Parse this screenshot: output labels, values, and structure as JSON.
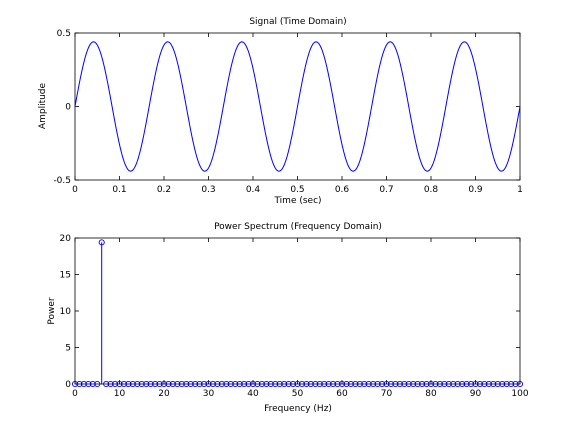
{
  "chart_data": [
    {
      "type": "line",
      "title": "Signal (Time Domain)",
      "xlabel": "Time (sec)",
      "ylabel": "Amplitude",
      "xlim": [
        0,
        1
      ],
      "ylim": [
        -0.5,
        0.5
      ],
      "xticks": [
        "0",
        "0.1",
        "0.2",
        "0.3",
        "0.4",
        "0.5",
        "0.6",
        "0.7",
        "0.8",
        "0.9",
        "1"
      ],
      "yticks": [
        "-0.5",
        "0",
        "0.5"
      ],
      "grid": false,
      "series": [
        {
          "function": "amplitude * sin(2*pi*frequency_hz*t)",
          "amplitude": 0.44,
          "frequency_hz": 6,
          "t_start": 0,
          "t_end": 1,
          "color": "#0000ff"
        }
      ]
    },
    {
      "type": "stem",
      "title": "Power Spectrum (Frequency Domain)",
      "xlabel": "Frequency (Hz)",
      "ylabel": "Power",
      "xlim": [
        0,
        100
      ],
      "ylim": [
        0,
        20
      ],
      "xticks": [
        "0",
        "10",
        "20",
        "30",
        "40",
        "50",
        "60",
        "70",
        "80",
        "90",
        "100"
      ],
      "yticks": [
        "0",
        "5",
        "10",
        "15",
        "20"
      ],
      "grid": false,
      "series": [
        {
          "x_start": 0,
          "x_end": 100,
          "x_step": 1,
          "peaks": [
            {
              "x": 6,
              "y": 19.4
            }
          ],
          "baseline_value": 0,
          "color": "#0000ff"
        }
      ]
    }
  ]
}
